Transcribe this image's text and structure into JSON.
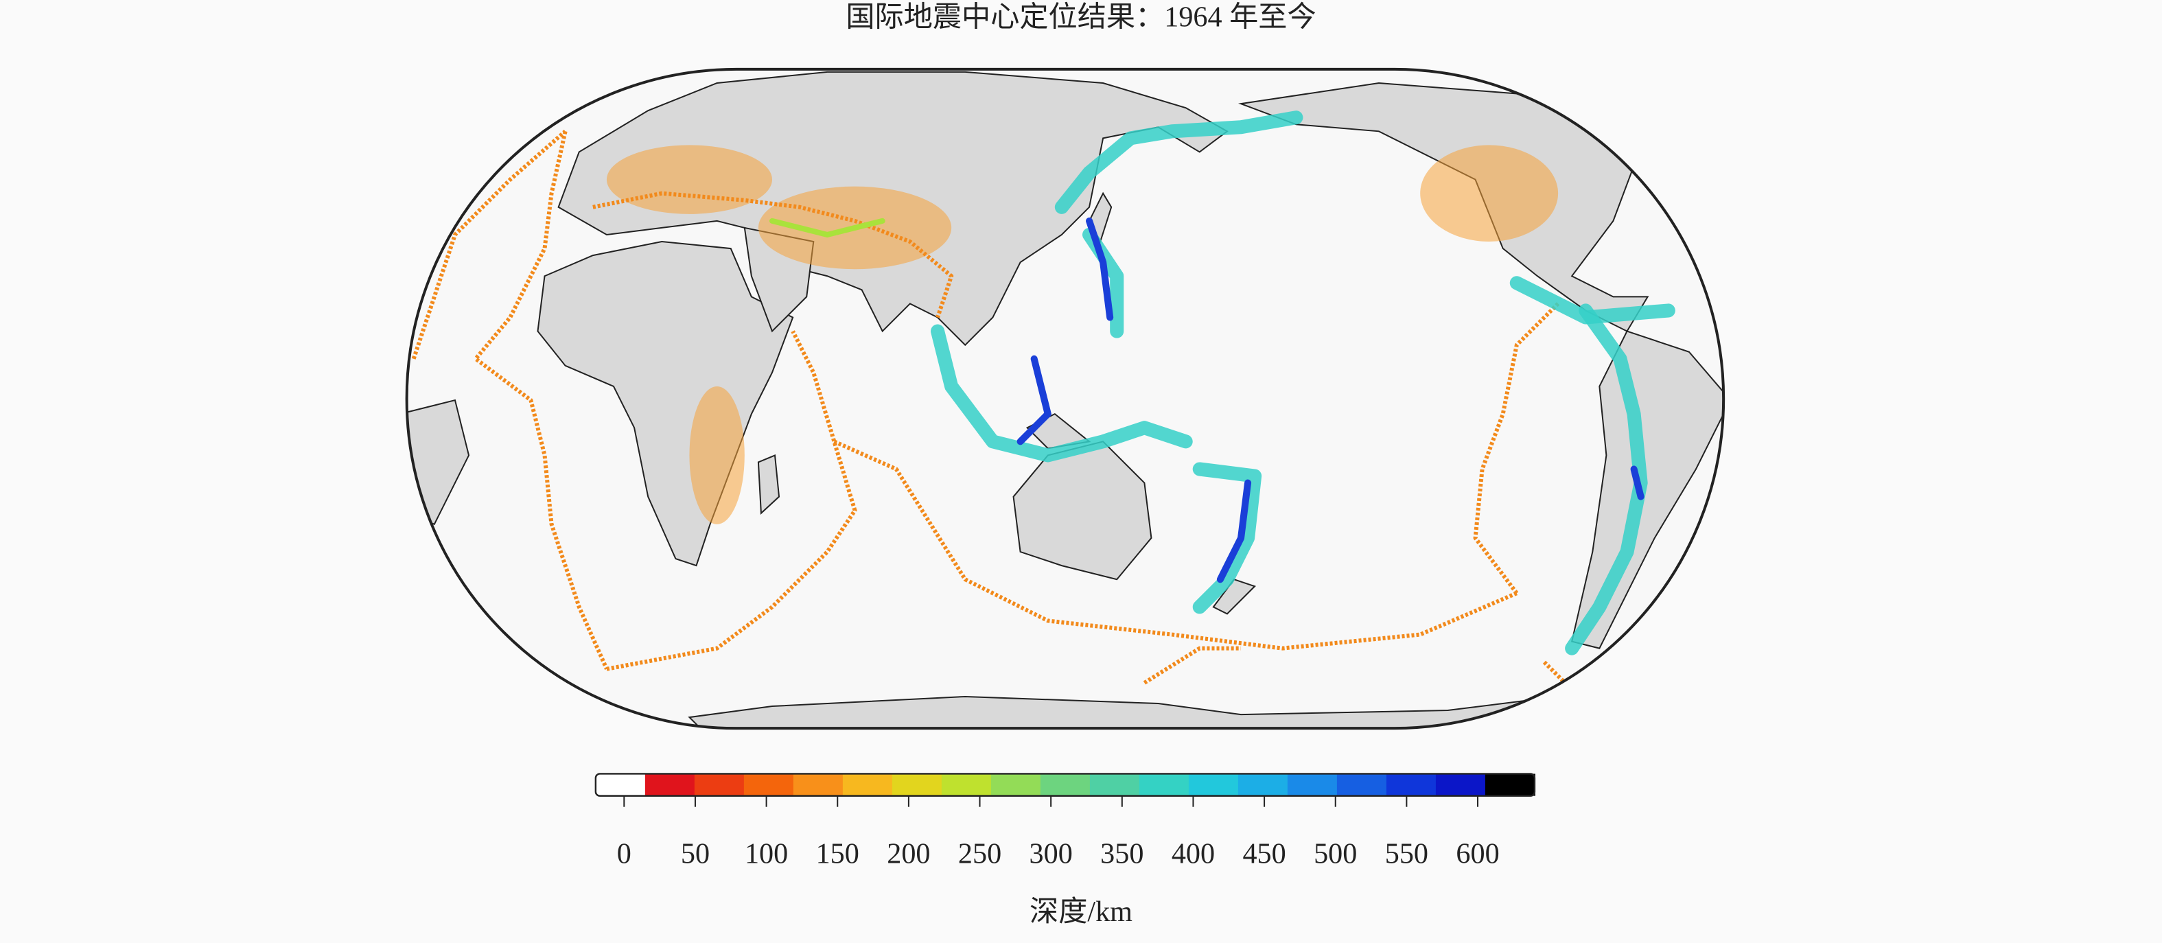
{
  "title": "国际地震中心定位结果：1964 年至今",
  "colorbar": {
    "label": "深度/km",
    "range": [
      -20,
      640
    ],
    "ticks": [
      0,
      50,
      100,
      150,
      200,
      250,
      300,
      350,
      400,
      450,
      500,
      550,
      600
    ],
    "colors": [
      "#ffffff",
      "#e0141c",
      "#ec3d12",
      "#f4650c",
      "#f8901a",
      "#f7b81f",
      "#e2d51e",
      "#bfe12e",
      "#93dc57",
      "#6dd47f",
      "#4fd0a4",
      "#34d2c4",
      "#22c8dc",
      "#1caee6",
      "#1a8ae8",
      "#165fe2",
      "#0f36da",
      "#0b16c8",
      "#000000"
    ]
  }
}
